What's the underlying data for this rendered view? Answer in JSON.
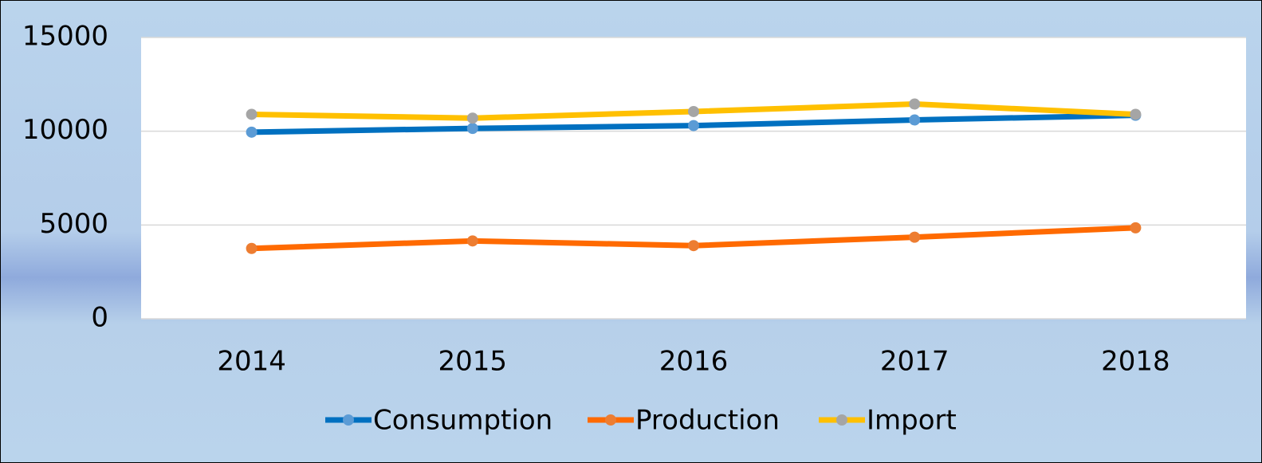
{
  "chart_data": {
    "type": "line",
    "categories": [
      "2014",
      "2015",
      "2016",
      "2017",
      "2018"
    ],
    "series": [
      {
        "name": "Consumption",
        "color": "#0070c0",
        "marker_color": "#5b9bd5",
        "values": [
          9950,
          10150,
          10300,
          10600,
          10850
        ]
      },
      {
        "name": "Production",
        "color": "#ff6a00",
        "marker_color": "#ed7d31",
        "values": [
          3750,
          4150,
          3900,
          4350,
          4850
        ]
      },
      {
        "name": "Import",
        "color": "#ffc000",
        "marker_color": "#a5a5a5",
        "values": [
          10900,
          10700,
          11050,
          11450,
          10900
        ]
      }
    ],
    "ylim": [
      0,
      15000
    ],
    "yticks": [
      0,
      5000,
      10000,
      15000
    ],
    "grid": true,
    "legend": "bottom"
  }
}
